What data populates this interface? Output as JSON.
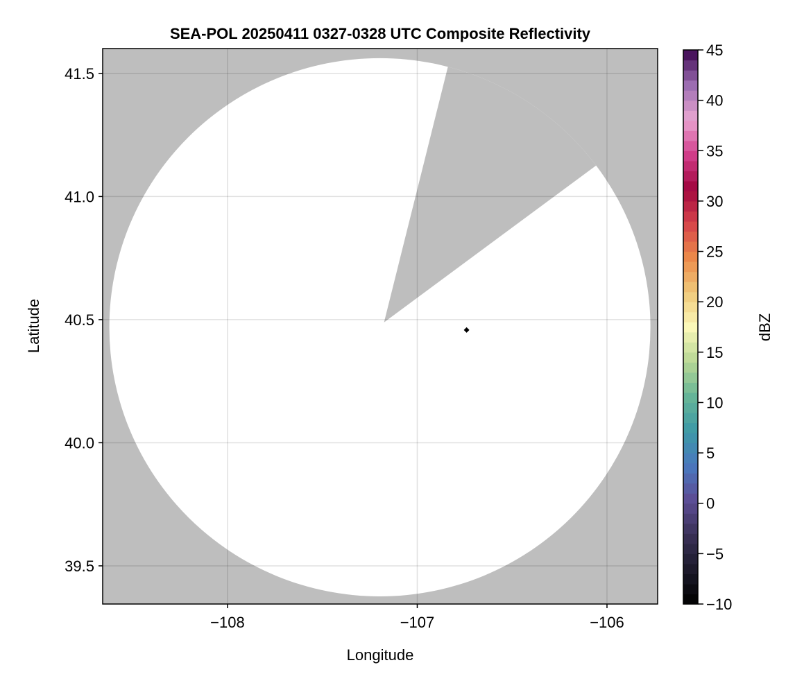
{
  "chart_data": {
    "type": "heatmap",
    "title": "SEA-POL 20250411 0327-0328 UTC Composite Reflectivity",
    "xlabel": "Longitude",
    "ylabel": "Latitude",
    "xlim": [
      -108.658,
      -105.733
    ],
    "ylim": [
      39.345,
      41.601
    ],
    "xticks": [
      -108,
      -107,
      -106
    ],
    "xtick_labels": [
      "−108",
      "−107",
      "−106"
    ],
    "yticks": [
      39.5,
      40.0,
      40.5,
      41.0,
      41.5
    ],
    "ytick_labels": [
      "39.5",
      "40.0",
      "40.5",
      "41.0",
      "41.5"
    ],
    "grid": true,
    "background_color": "#bebebe",
    "coverage_color": "#ffffff",
    "radar_coverage": {
      "center": [
        -107.197,
        40.469
      ],
      "radius_lon_deg": 1.426,
      "radius_lat_deg": 1.093,
      "blocked_sector_apex": [
        -107.175,
        40.489
      ],
      "blocked_sector_edges": [
        [
          -106.839,
          41.525
        ],
        [
          -106.066,
          41.121
        ]
      ]
    },
    "marker": {
      "lon": -106.74,
      "lat": 40.458,
      "shape": "diamond",
      "color": "#000000"
    },
    "colorbar": {
      "label": "dBZ",
      "range": [
        -10,
        45
      ],
      "ticks": [
        -10,
        -5,
        0,
        5,
        10,
        15,
        20,
        25,
        30,
        35,
        40,
        45
      ],
      "tick_labels": [
        "−10",
        "−5",
        "0",
        "5",
        "10",
        "15",
        "20",
        "25",
        "30",
        "35",
        "40",
        "45"
      ],
      "levels": 55,
      "colormap_stops": [
        "#000000",
        "#1c1a2a",
        "#3a3157",
        "#5c4c94",
        "#4a78be",
        "#3d9aa6",
        "#67b597",
        "#b7d795",
        "#fbf8b8",
        "#f0c97a",
        "#ec8a4a",
        "#d5434a",
        "#a1063f",
        "#d33f8c",
        "#e9a6d2",
        "#9b6cb0",
        "#3c0650"
      ],
      "position": "right"
    }
  }
}
